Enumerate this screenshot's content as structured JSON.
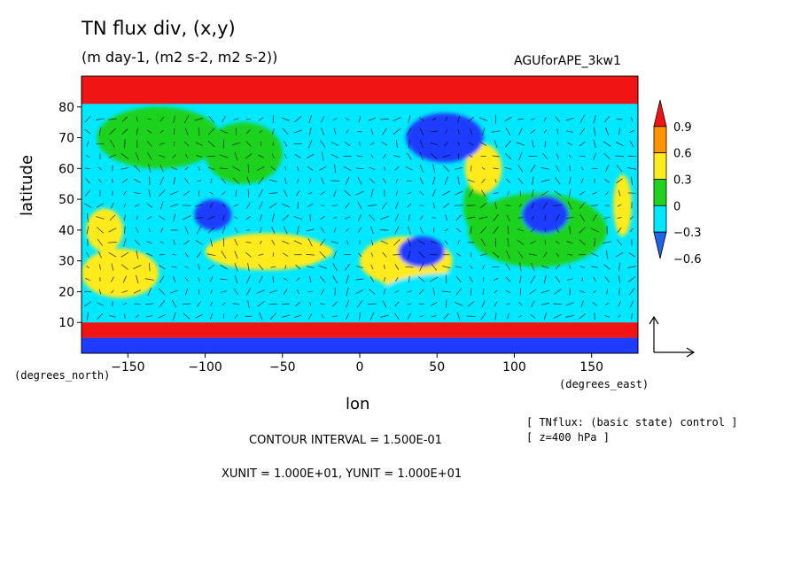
{
  "chart_data": {
    "type": "heatmap",
    "title": "TN flux div, (x,y)",
    "subtitle": "(m day-1, (m2 s-2, m2 s-2))",
    "run_name": "AGUforAPE_3kw1",
    "xlabel": "lon",
    "ylabel": "latitude",
    "x_unit": "(degrees_east)",
    "y_unit": "(degrees_north)",
    "xlim": [
      -180,
      180
    ],
    "ylim": [
      0,
      90
    ],
    "x_ticks": [
      -150,
      -100,
      -50,
      0,
      50,
      100,
      150
    ],
    "x_tick_labels": [
      "−150",
      "−100",
      "−50",
      "0",
      "50",
      "100",
      "150"
    ],
    "y_ticks": [
      10,
      20,
      30,
      40,
      50,
      60,
      70,
      80
    ],
    "y_tick_labels": [
      "10",
      "20",
      "30",
      "40",
      "50",
      "60",
      "70",
      "80"
    ],
    "colorbar": {
      "levels": [
        -0.6,
        -0.3,
        0,
        0.3,
        0.6,
        0.9
      ],
      "labels": [
        "−0.6",
        "−0.3",
        "0",
        "0.3",
        "0.6",
        "0.9"
      ],
      "colors": [
        "#1e64e6",
        "#00e8ff",
        "#1ed21e",
        "#ffeb1e",
        "#ff9600",
        "#f01414"
      ]
    },
    "field_colors": {
      "strong_negative": "#1e3cff",
      "negative": "#00e8ff",
      "positive": "#1ed21e",
      "moderate_positive": "#ffeb1e",
      "strong_positive": "#ff9600",
      "extreme_positive": "#f01414"
    },
    "features": [
      {
        "kind": "band",
        "lat": [
          81,
          90
        ],
        "value": 1.0
      },
      {
        "kind": "band",
        "lat": [
          0,
          5
        ],
        "value": -0.8
      },
      {
        "kind": "band",
        "lat": [
          5,
          10
        ],
        "value": 0.9
      },
      {
        "kind": "blob",
        "lon": -60,
        "lat": 33,
        "rx": 40,
        "ry": 6,
        "value": 0.35
      },
      {
        "kind": "blob",
        "lon": -35,
        "lat": 33,
        "rx": 18,
        "ry": 3,
        "value": 0.45
      },
      {
        "kind": "blob",
        "lon": 30,
        "lat": 30,
        "rx": 30,
        "ry": 8,
        "value": 0.35
      },
      {
        "kind": "blob",
        "lon": 20,
        "lat": 27,
        "rx": 10,
        "ry": 5,
        "value": 0.45
      },
      {
        "kind": "blob",
        "lon": 115,
        "lat": 40,
        "rx": 45,
        "ry": 12,
        "value": 0.2
      },
      {
        "kind": "blob",
        "lon": 75,
        "lat": 48,
        "rx": 8,
        "ry": 8,
        "value": 0.2
      },
      {
        "kind": "blob",
        "lon": 80,
        "lat": 60,
        "rx": 12,
        "ry": 8,
        "value": 0.4
      },
      {
        "kind": "blob",
        "lon": 170,
        "lat": 48,
        "rx": 6,
        "ry": 10,
        "value": 0.4
      },
      {
        "kind": "blob",
        "lon": -155,
        "lat": 26,
        "rx": 25,
        "ry": 8,
        "value": 0.45
      },
      {
        "kind": "blob",
        "lon": -165,
        "lat": 40,
        "rx": 12,
        "ry": 7,
        "value": 0.4
      },
      {
        "kind": "blob",
        "lon": -130,
        "lat": 70,
        "rx": 40,
        "ry": 10,
        "value": 0.15
      },
      {
        "kind": "blob",
        "lon": -75,
        "lat": 65,
        "rx": 25,
        "ry": 10,
        "value": 0.15
      },
      {
        "kind": "blob",
        "lon": 60,
        "lat": 20,
        "rx": 45,
        "ry": 6,
        "value": -0.15
      },
      {
        "kind": "blob",
        "lon": 55,
        "lat": 70,
        "rx": 25,
        "ry": 8,
        "value": -0.45
      },
      {
        "kind": "blob",
        "lon": 40,
        "lat": 33,
        "rx": 15,
        "ry": 5,
        "value": -0.4
      },
      {
        "kind": "blob",
        "lon": -95,
        "lat": 45,
        "rx": 12,
        "ry": 5,
        "value": -0.4
      },
      {
        "kind": "blob",
        "lon": 120,
        "lat": 45,
        "rx": 15,
        "ry": 6,
        "value": -0.4
      }
    ]
  },
  "notes": {
    "line1": "[ TNflux: (basic state) control ]",
    "line2": "[ z=400 hPa ]"
  },
  "footer": {
    "contour_interval": "CONTOUR INTERVAL = 1.500E-01",
    "units": "XUNIT = 1.000E+01, YUNIT = 1.000E+01"
  }
}
